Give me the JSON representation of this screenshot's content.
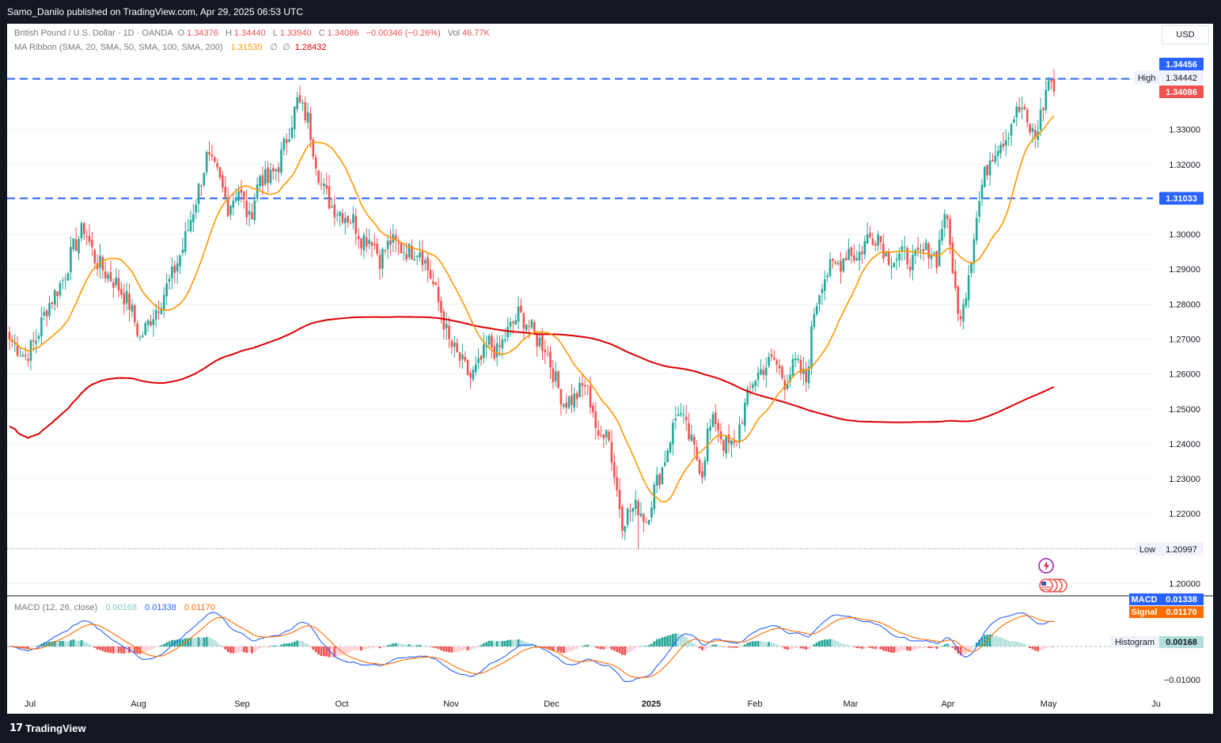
{
  "header": {
    "publisher_text": "Samo_Danilo published on TradingView.com, Apr 29, 2025 06:53 UTC"
  },
  "footer": {
    "brand": "TradingView",
    "logo_glyph": "17"
  },
  "legend": {
    "symbol": "British Pound / U.S. Dollar · 1D · OANDA",
    "open_label": "O",
    "open": "1.34376",
    "high_label": "H",
    "high": "1.34440",
    "low_label": "L",
    "low": "1.33940",
    "close_label": "C",
    "close": "1.34086",
    "change": "−0.00346 (−0.26%)",
    "vol_label": "Vol",
    "vol": "46.77K",
    "ma_label": "MA Ribbon (SMA, 20, SMA, 50, SMA, 100, SMA, 200)",
    "ma_value": "1.31535",
    "ma_empty1": "∅",
    "ma_empty2": "∅",
    "ma_value2": "1.28432",
    "macd_label": "MACD (12, 26, close)",
    "macd_hist": "0.00168",
    "macd_macd": "0.01338",
    "macd_signal": "0.01170"
  },
  "currency_button": "USD",
  "price_badges": {
    "top": "1.34456",
    "high_label": "High",
    "high_value": "1.34442",
    "last": "1.34086",
    "level2": "1.31033",
    "low_label": "Low",
    "low_value": "1.20997",
    "macd_label": "MACD",
    "macd_value": "0.01338",
    "signal_label": "Signal",
    "signal_value": "0.01170",
    "hist_label": "Histogram",
    "hist_value": "0.00168"
  },
  "colors": {
    "up": "#26a69a",
    "down": "#ef5350",
    "sma20": "#ff9800",
    "sma200": "#e00000",
    "level_line": "#2962ff",
    "macd": "#2962ff",
    "signal": "#ff6d00"
  },
  "chart_data": {
    "type": "candlestick",
    "symbol": "GBP/USD",
    "timeframe": "1D",
    "price_axis": {
      "ticks": [
        "1.33000",
        "1.32000",
        "1.30000",
        "1.29000",
        "1.28000",
        "1.27000",
        "1.26000",
        "1.25000",
        "1.24000",
        "1.23000",
        "1.22000",
        "1.20000"
      ],
      "range": [
        1.1955,
        1.3525
      ]
    },
    "macd_axis": {
      "ticks": [
        "−0.01000"
      ],
      "range": [
        -0.0135,
        0.0155
      ]
    },
    "time_axis": [
      "Jul",
      "Aug",
      "Sep",
      "Oct",
      "Nov",
      "Dec",
      "2025",
      "Feb",
      "Mar",
      "Apr",
      "May",
      "Ju"
    ],
    "levels": [
      1.3445,
      1.3103
    ],
    "high": 1.34442,
    "low": 1.20997,
    "close_anchors": [
      [
        0,
        1.27
      ],
      [
        6,
        1.265
      ],
      [
        10,
        1.27
      ],
      [
        14,
        1.279
      ],
      [
        20,
        1.287
      ],
      [
        24,
        1.296
      ],
      [
        28,
        1.302
      ],
      [
        32,
        1.293
      ],
      [
        36,
        1.289
      ],
      [
        40,
        1.286
      ],
      [
        45,
        1.28
      ],
      [
        49,
        1.27
      ],
      [
        53,
        1.276
      ],
      [
        56,
        1.28
      ],
      [
        61,
        1.288
      ],
      [
        65,
        1.296
      ],
      [
        70,
        1.31
      ],
      [
        74,
        1.322
      ],
      [
        78,
        1.317
      ],
      [
        82,
        1.308
      ],
      [
        86,
        1.313
      ],
      [
        90,
        1.304
      ],
      [
        94,
        1.317
      ],
      [
        97,
        1.315
      ],
      [
        101,
        1.32
      ],
      [
        105,
        1.33
      ],
      [
        108,
        1.338
      ],
      [
        112,
        1.333
      ],
      [
        114,
        1.325
      ],
      [
        117,
        1.314
      ],
      [
        121,
        1.308
      ],
      [
        125,
        1.306
      ],
      [
        129,
        1.304
      ],
      [
        132,
        1.299
      ],
      [
        136,
        1.299
      ],
      [
        139,
        1.293
      ],
      [
        143,
        1.298
      ],
      [
        147,
        1.296
      ],
      [
        150,
        1.295
      ],
      [
        154,
        1.296
      ],
      [
        158,
        1.288
      ],
      [
        162,
        1.278
      ],
      [
        165,
        1.269
      ],
      [
        169,
        1.264
      ],
      [
        173,
        1.259
      ],
      [
        176,
        1.262
      ],
      [
        180,
        1.269
      ],
      [
        183,
        1.266
      ],
      [
        187,
        1.272
      ],
      [
        191,
        1.277
      ],
      [
        194,
        1.275
      ],
      [
        198,
        1.27
      ],
      [
        201,
        1.268
      ],
      [
        205,
        1.258
      ],
      [
        208,
        1.252
      ],
      [
        212,
        1.253
      ],
      [
        216,
        1.257
      ],
      [
        219,
        1.25
      ],
      [
        221,
        1.24
      ],
      [
        224,
        1.246
      ],
      [
        227,
        1.231
      ],
      [
        230,
        1.218
      ],
      [
        233,
        1.221
      ],
      [
        236,
        1.222
      ],
      [
        239,
        1.218
      ],
      [
        242,
        1.227
      ],
      [
        245,
        1.233
      ],
      [
        248,
        1.242
      ],
      [
        251,
        1.25
      ],
      [
        254,
        1.244
      ],
      [
        257,
        1.238
      ],
      [
        260,
        1.232
      ],
      [
        262,
        1.243
      ],
      [
        265,
        1.247
      ],
      [
        268,
        1.24
      ],
      [
        272,
        1.239
      ],
      [
        275,
        1.248
      ],
      [
        279,
        1.258
      ],
      [
        283,
        1.262
      ],
      [
        287,
        1.264
      ],
      [
        291,
        1.258
      ],
      [
        295,
        1.263
      ],
      [
        299,
        1.258
      ],
      [
        302,
        1.278
      ],
      [
        305,
        1.287
      ],
      [
        308,
        1.29
      ],
      [
        312,
        1.292
      ],
      [
        315,
        1.296
      ],
      [
        318,
        1.293
      ],
      [
        322,
        1.299
      ],
      [
        326,
        1.3
      ],
      [
        329,
        1.294
      ],
      [
        332,
        1.293
      ],
      [
        336,
        1.294
      ],
      [
        339,
        1.292
      ],
      [
        342,
        1.294
      ],
      [
        345,
        1.296
      ],
      [
        348,
        1.293
      ],
      [
        351,
        1.307
      ],
      [
        354,
        1.291
      ],
      [
        356,
        1.276
      ],
      [
        359,
        1.284
      ],
      [
        362,
        1.3
      ],
      [
        365,
        1.314
      ],
      [
        368,
        1.322
      ],
      [
        371,
        1.326
      ],
      [
        374,
        1.328
      ],
      [
        377,
        1.334
      ],
      [
        380,
        1.336
      ],
      [
        382,
        1.331
      ],
      [
        385,
        1.328
      ],
      [
        388,
        1.337
      ],
      [
        390,
        1.3444
      ],
      [
        392,
        1.3409
      ]
    ],
    "last_close": 1.34086
  }
}
